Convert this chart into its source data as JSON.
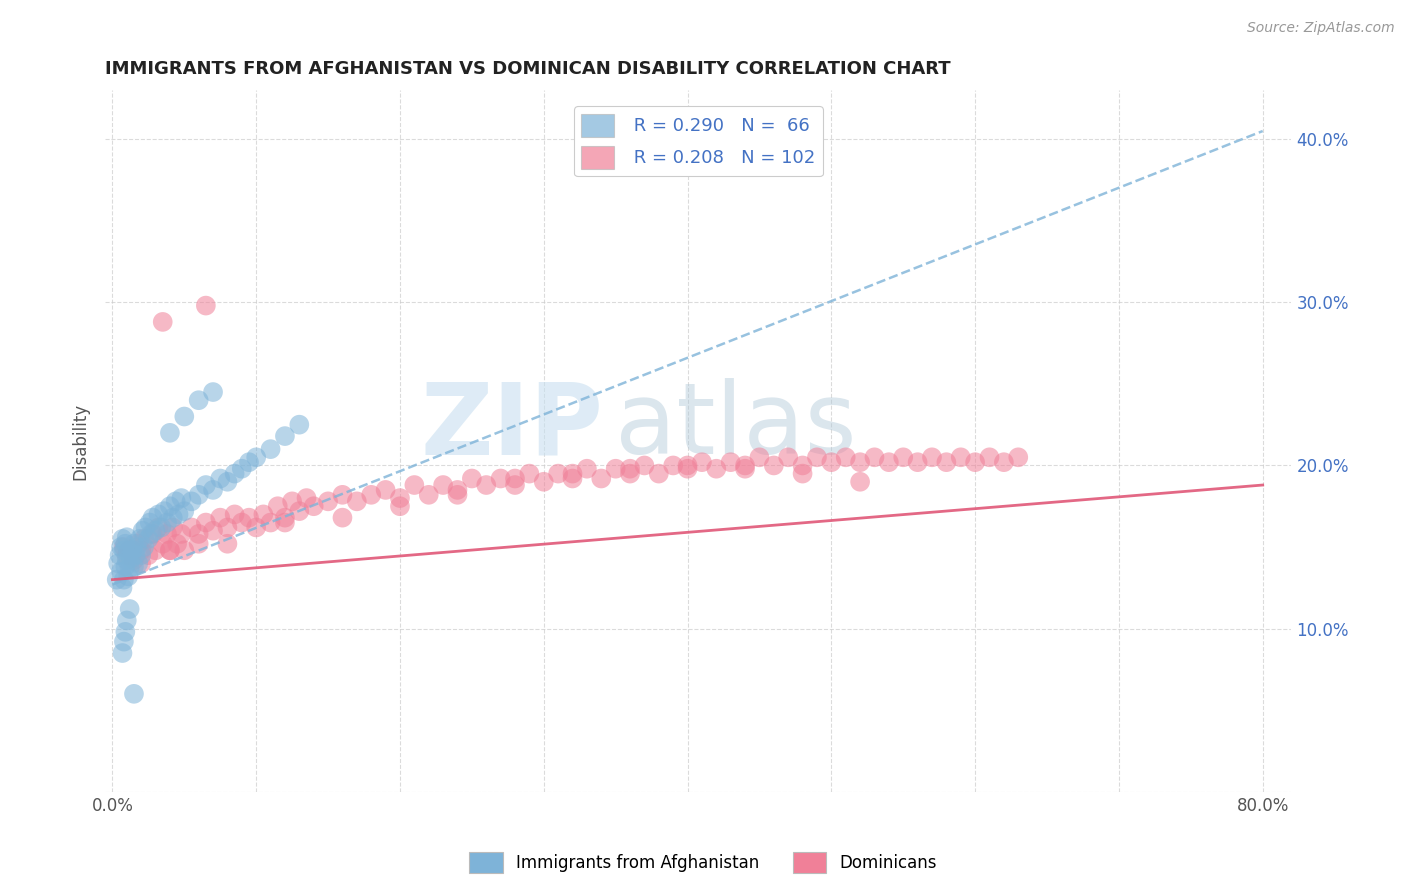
{
  "title": "IMMIGRANTS FROM AFGHANISTAN VS DOMINICAN DISABILITY CORRELATION CHART",
  "source": "Source: ZipAtlas.com",
  "ylabel": "Disability",
  "xlim": [
    -0.005,
    0.82
  ],
  "ylim": [
    0.03,
    0.43
  ],
  "xticks": [
    0.0,
    0.1,
    0.2,
    0.3,
    0.4,
    0.5,
    0.6,
    0.7,
    0.8
  ],
  "yticks": [
    0.0,
    0.1,
    0.2,
    0.3,
    0.4
  ],
  "color_afghanistan": "#7eb3d8",
  "color_dominican": "#f08098",
  "color_trend_afghanistan": "#7eb3d8",
  "color_trend_dominican": "#e05878",
  "color_text_blue": "#4472c4",
  "watermark_zip": "ZIP",
  "watermark_atlas": "atlas",
  "legend_r1": "R = 0.290",
  "legend_n1": "N =  66",
  "legend_r2": "R = 0.208",
  "legend_n2": "N = 102",
  "af_x": [
    0.003,
    0.004,
    0.005,
    0.006,
    0.006,
    0.007,
    0.007,
    0.008,
    0.008,
    0.009,
    0.009,
    0.01,
    0.01,
    0.011,
    0.011,
    0.012,
    0.013,
    0.014,
    0.015,
    0.015,
    0.016,
    0.017,
    0.018,
    0.019,
    0.02,
    0.021,
    0.022,
    0.023,
    0.025,
    0.026,
    0.027,
    0.028,
    0.03,
    0.032,
    0.034,
    0.036,
    0.038,
    0.04,
    0.042,
    0.044,
    0.046,
    0.048,
    0.05,
    0.055,
    0.06,
    0.065,
    0.07,
    0.075,
    0.08,
    0.085,
    0.09,
    0.095,
    0.1,
    0.11,
    0.12,
    0.13,
    0.04,
    0.05,
    0.06,
    0.07,
    0.007,
    0.008,
    0.009,
    0.01,
    0.012,
    0.015
  ],
  "af_y": [
    0.13,
    0.14,
    0.145,
    0.135,
    0.15,
    0.125,
    0.155,
    0.13,
    0.148,
    0.138,
    0.152,
    0.142,
    0.156,
    0.132,
    0.147,
    0.137,
    0.143,
    0.148,
    0.138,
    0.152,
    0.145,
    0.15,
    0.14,
    0.155,
    0.145,
    0.16,
    0.15,
    0.162,
    0.155,
    0.165,
    0.158,
    0.168,
    0.16,
    0.17,
    0.162,
    0.172,
    0.165,
    0.175,
    0.168,
    0.178,
    0.17,
    0.18,
    0.172,
    0.178,
    0.182,
    0.188,
    0.185,
    0.192,
    0.19,
    0.195,
    0.198,
    0.202,
    0.205,
    0.21,
    0.218,
    0.225,
    0.22,
    0.23,
    0.24,
    0.245,
    0.085,
    0.092,
    0.098,
    0.105,
    0.112,
    0.06
  ],
  "dom_x": [
    0.008,
    0.01,
    0.012,
    0.015,
    0.018,
    0.02,
    0.022,
    0.025,
    0.028,
    0.03,
    0.032,
    0.035,
    0.038,
    0.04,
    0.042,
    0.045,
    0.048,
    0.05,
    0.055,
    0.06,
    0.065,
    0.07,
    0.075,
    0.08,
    0.085,
    0.09,
    0.095,
    0.1,
    0.105,
    0.11,
    0.115,
    0.12,
    0.125,
    0.13,
    0.135,
    0.14,
    0.15,
    0.16,
    0.17,
    0.18,
    0.19,
    0.2,
    0.21,
    0.22,
    0.23,
    0.24,
    0.25,
    0.26,
    0.27,
    0.28,
    0.29,
    0.3,
    0.31,
    0.32,
    0.33,
    0.34,
    0.35,
    0.36,
    0.37,
    0.38,
    0.39,
    0.4,
    0.41,
    0.42,
    0.43,
    0.44,
    0.45,
    0.46,
    0.47,
    0.48,
    0.49,
    0.5,
    0.51,
    0.52,
    0.53,
    0.54,
    0.55,
    0.56,
    0.57,
    0.58,
    0.59,
    0.6,
    0.61,
    0.62,
    0.63,
    0.02,
    0.04,
    0.06,
    0.08,
    0.12,
    0.16,
    0.2,
    0.24,
    0.28,
    0.32,
    0.36,
    0.4,
    0.44,
    0.48,
    0.52,
    0.035,
    0.065
  ],
  "dom_y": [
    0.15,
    0.145,
    0.148,
    0.142,
    0.152,
    0.14,
    0.155,
    0.145,
    0.158,
    0.148,
    0.162,
    0.152,
    0.158,
    0.148,
    0.162,
    0.152,
    0.158,
    0.148,
    0.162,
    0.158,
    0.165,
    0.16,
    0.168,
    0.162,
    0.17,
    0.165,
    0.168,
    0.162,
    0.17,
    0.165,
    0.175,
    0.168,
    0.178,
    0.172,
    0.18,
    0.175,
    0.178,
    0.182,
    0.178,
    0.182,
    0.185,
    0.18,
    0.188,
    0.182,
    0.188,
    0.185,
    0.192,
    0.188,
    0.192,
    0.188,
    0.195,
    0.19,
    0.195,
    0.192,
    0.198,
    0.192,
    0.198,
    0.195,
    0.2,
    0.195,
    0.2,
    0.198,
    0.202,
    0.198,
    0.202,
    0.2,
    0.205,
    0.2,
    0.205,
    0.2,
    0.205,
    0.202,
    0.205,
    0.202,
    0.205,
    0.202,
    0.205,
    0.202,
    0.205,
    0.202,
    0.205,
    0.202,
    0.205,
    0.202,
    0.205,
    0.148,
    0.148,
    0.152,
    0.152,
    0.165,
    0.168,
    0.175,
    0.182,
    0.192,
    0.195,
    0.198,
    0.2,
    0.198,
    0.195,
    0.19,
    0.288,
    0.298
  ],
  "trend_af_x0": 0.0,
  "trend_af_y0": 0.127,
  "trend_af_x1": 0.8,
  "trend_af_y1": 0.405,
  "trend_dom_x0": 0.0,
  "trend_dom_y0": 0.13,
  "trend_dom_x1": 0.8,
  "trend_dom_y1": 0.188
}
